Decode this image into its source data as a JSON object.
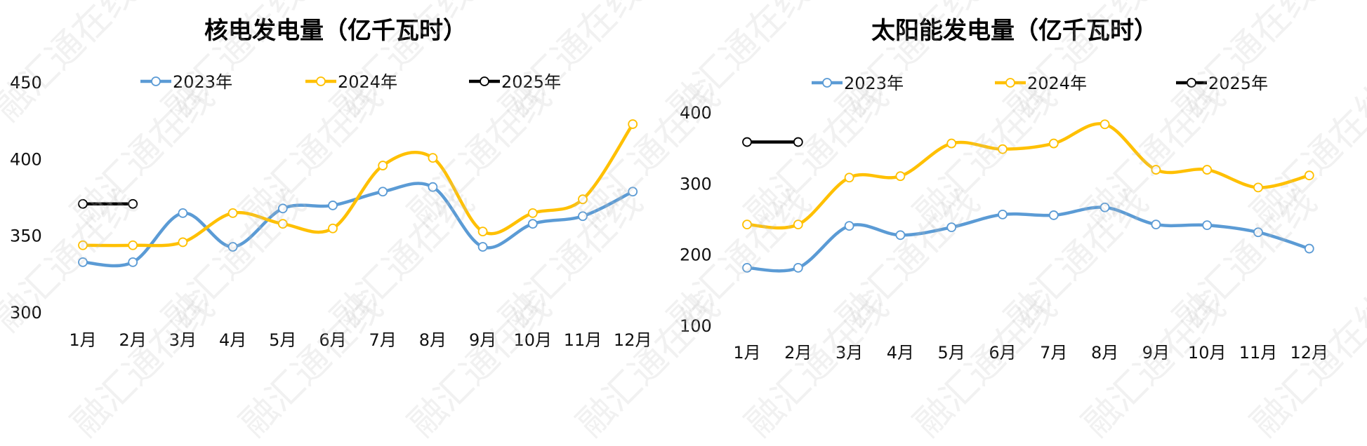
{
  "watermark": "融汇通在线",
  "charts": [
    {
      "type": "line",
      "title": "核电发电量（亿千瓦时）",
      "categories": [
        "1月",
        "2月",
        "3月",
        "4月",
        "5月",
        "6月",
        "7月",
        "8月",
        "9月",
        "10月",
        "11月",
        "12月"
      ],
      "yticks": [
        300,
        350,
        400,
        450
      ],
      "ylim": [
        300,
        450
      ],
      "series": [
        {
          "name": "2023年",
          "color": "#5b9bd5",
          "values": [
            333,
            333,
            365,
            343,
            368,
            370,
            379,
            382,
            343,
            358,
            363,
            379
          ]
        },
        {
          "name": "2024年",
          "color": "#ffc000",
          "values": [
            344,
            344,
            346,
            365,
            358,
            355,
            396,
            401,
            353,
            365,
            374,
            423
          ]
        },
        {
          "name": "2025年",
          "color": "#000000",
          "values": [
            371,
            371
          ]
        }
      ]
    },
    {
      "type": "line",
      "title": "太阳能发电量（亿千瓦时）",
      "categories": [
        "1月",
        "2月",
        "3月",
        "4月",
        "5月",
        "6月",
        "7月",
        "8月",
        "9月",
        "10月",
        "11月",
        "12月"
      ],
      "yticks": [
        100,
        200,
        300,
        400
      ],
      "ylim": [
        100,
        400
      ],
      "series": [
        {
          "name": "2023年",
          "color": "#5b9bd5",
          "values": [
            182,
            182,
            241,
            228,
            239,
            257,
            256,
            267,
            243,
            242,
            232,
            209
          ]
        },
        {
          "name": "2024年",
          "color": "#ffc000",
          "values": [
            243,
            243,
            309,
            311,
            357,
            349,
            357,
            384,
            320,
            320,
            295,
            312
          ]
        },
        {
          "name": "2025年",
          "color": "#000000",
          "values": [
            359,
            359
          ]
        }
      ]
    }
  ]
}
